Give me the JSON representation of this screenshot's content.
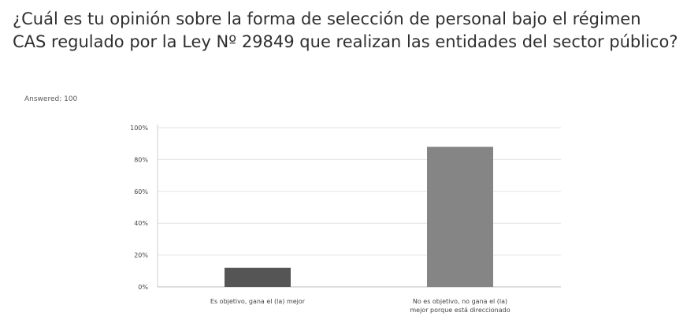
{
  "question": {
    "title": "¿Cuál es tu opinión sobre la forma de selección de personal bajo el régimen CAS regulado por la Ley Nº 29849 que realizan las entidades del sector público?",
    "answered_label": "Answered: 100"
  },
  "chart_data": {
    "type": "bar",
    "title": "",
    "xlabel": "",
    "ylabel": "",
    "categories": [
      [
        "Es objetivo, gana el (la) mejor"
      ],
      [
        "No es objetivo, no gana el (la)",
        "mejor porque está direccionado"
      ]
    ],
    "values": [
      12,
      88
    ],
    "bar_colors": [
      "#555555",
      "#858585"
    ],
    "ylim": [
      0,
      100
    ],
    "y_ticks": [
      0,
      20,
      40,
      60,
      80,
      100
    ],
    "y_tick_labels": [
      "0%",
      "20%",
      "40%",
      "60%",
      "80%",
      "100%"
    ],
    "grid": true,
    "legend": "none"
  }
}
